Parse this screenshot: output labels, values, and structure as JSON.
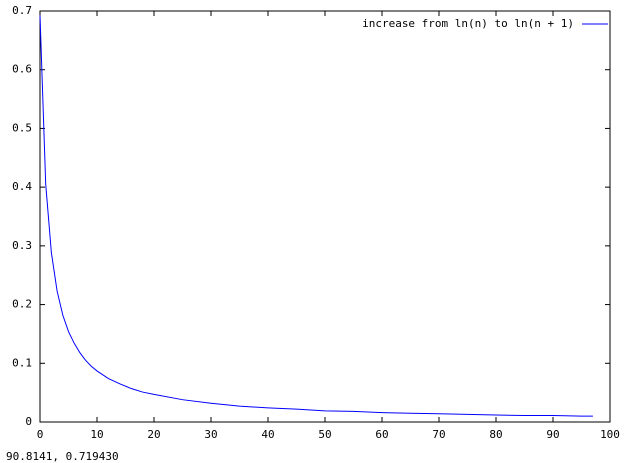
{
  "chart_data": {
    "type": "line",
    "x": [
      0,
      1,
      2,
      3,
      4,
      5,
      6,
      7,
      8,
      9,
      10,
      12,
      14,
      16,
      18,
      20,
      25,
      30,
      35,
      40,
      45,
      50,
      55,
      60,
      65,
      70,
      75,
      80,
      85,
      90,
      95,
      97
    ],
    "series": [
      {
        "name": "increase from ln(n) to ln(n + 1)",
        "color": "#0000ff",
        "values": [
          0.693,
          0.405,
          0.288,
          0.223,
          0.182,
          0.154,
          0.134,
          0.118,
          0.105,
          0.095,
          0.087,
          0.074,
          0.065,
          0.057,
          0.051,
          0.047,
          0.038,
          0.032,
          0.027,
          0.024,
          0.022,
          0.019,
          0.018,
          0.016,
          0.015,
          0.014,
          0.013,
          0.012,
          0.011,
          0.011,
          0.01,
          0.01
        ]
      }
    ],
    "xlim": [
      0,
      100
    ],
    "xticks": [
      0,
      10,
      20,
      30,
      40,
      50,
      60,
      70,
      80,
      90,
      100
    ],
    "ylim": [
      0,
      0.7
    ],
    "yticks": [
      0,
      0.1,
      0.2,
      0.3,
      0.4,
      0.5,
      0.6,
      0.7
    ],
    "legend": "top-right",
    "grid": false
  },
  "status_text": "90.8141,  0.719430"
}
